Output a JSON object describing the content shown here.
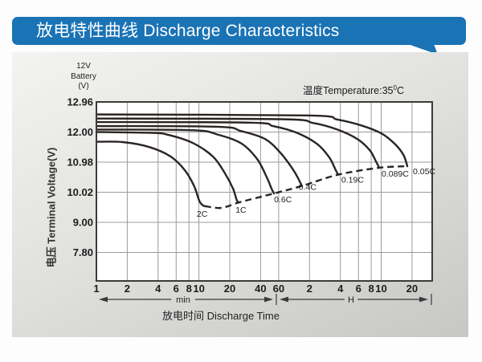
{
  "header": {
    "title": "放电特性曲线 Discharge Characteristics",
    "bg_color": "#1a73b5"
  },
  "chart_data": {
    "type": "line",
    "title_corner": [
      "12V",
      "Battery",
      "(V)"
    ],
    "temperature_note": {
      "text": "温度Temperature:35",
      "degree_sup": "0",
      "unit": "C"
    },
    "x_axis": {
      "title": "放电时间 Discharge Time",
      "scale": "log",
      "unit_segments": [
        {
          "label": "min",
          "from_minutes": 1,
          "to_minutes": 60
        },
        {
          "label": "H",
          "from_minutes": 60,
          "to_minutes": 1260
        }
      ],
      "ticks": [
        {
          "label": "1",
          "minutes": 1
        },
        {
          "label": "2",
          "minutes": 2
        },
        {
          "label": "4",
          "minutes": 4
        },
        {
          "label": "6",
          "minutes": 6
        },
        {
          "label": "8",
          "minutes": 8
        },
        {
          "label": "10",
          "minutes": 10
        },
        {
          "label": "20",
          "minutes": 20
        },
        {
          "label": "40",
          "minutes": 40
        },
        {
          "label": "60",
          "minutes": 60
        },
        {
          "label": "2",
          "minutes": 120
        },
        {
          "label": "4",
          "minutes": 240
        },
        {
          "label": "6",
          "minutes": 360
        },
        {
          "label": "8",
          "minutes": 480
        },
        {
          "label": "10",
          "minutes": 600
        },
        {
          "label": "20",
          "minutes": 1200
        }
      ]
    },
    "y_axis": {
      "title": "电压 Terminal Voltage(V)",
      "tick_labels": [
        "12.96",
        "12.00",
        "10.98",
        "10.02",
        "9.00",
        "7.80"
      ],
      "tick_values": [
        12.96,
        12.0,
        10.98,
        10.02,
        9.0,
        7.8
      ],
      "grid": true
    },
    "series": [
      {
        "name": "0.05C",
        "points": [
          [
            1,
            12.56
          ],
          [
            109,
            12.53
          ],
          [
            224,
            12.4
          ],
          [
            385,
            12.21
          ],
          [
            605,
            11.95
          ],
          [
            825,
            11.58
          ],
          [
            995,
            11.21
          ],
          [
            1079,
            10.85
          ]
        ],
        "label_offset": [
          7,
          10
        ]
      },
      {
        "name": "0.089C",
        "points": [
          [
            1,
            12.43
          ],
          [
            63,
            12.41
          ],
          [
            130,
            12.29
          ],
          [
            224,
            12.08
          ],
          [
            352,
            11.76
          ],
          [
            465,
            11.38
          ],
          [
            533,
            11.01
          ],
          [
            574,
            10.8
          ]
        ],
        "label_offset": [
          3,
          11
        ]
      },
      {
        "name": "0.19C",
        "points": [
          [
            1,
            12.32
          ],
          [
            31,
            12.3
          ],
          [
            53,
            12.19
          ],
          [
            91,
            11.97
          ],
          [
            143,
            11.59
          ],
          [
            187,
            11.14
          ],
          [
            215,
            10.74
          ],
          [
            228,
            10.58
          ]
        ],
        "label_offset": [
          4,
          10
        ]
      },
      {
        "name": "0.4C",
        "points": [
          [
            1,
            12.19
          ],
          [
            15,
            12.17
          ],
          [
            25.8,
            12.03
          ],
          [
            44.4,
            11.76
          ],
          [
            63.4,
            11.27
          ],
          [
            83,
            10.74
          ],
          [
            94,
            10.43
          ],
          [
            101,
            10.22
          ]
        ],
        "label_offset": [
          -4,
          5
        ]
      },
      {
        "name": "0.6C",
        "points": [
          [
            1,
            12.08
          ],
          [
            8.7,
            12.06
          ],
          [
            15,
            11.92
          ],
          [
            25.8,
            11.62
          ],
          [
            36.9,
            11.09
          ],
          [
            45.9,
            10.5
          ],
          [
            51,
            10.14
          ],
          [
            54,
            9.98
          ]
        ],
        "label_offset": [
          0,
          11
        ]
      },
      {
        "name": "1C",
        "points": [
          [
            1,
            12.0
          ],
          [
            3.5,
            11.97
          ],
          [
            5.1,
            11.9
          ],
          [
            8.7,
            11.63
          ],
          [
            13.7,
            11.17
          ],
          [
            17.9,
            10.63
          ],
          [
            21.5,
            10.14
          ],
          [
            23.5,
            9.74
          ],
          [
            24.9,
            9.68
          ]
        ],
        "label_offset": [
          -5,
          13
        ]
      },
      {
        "name": "2C",
        "points": [
          [
            1,
            11.67
          ],
          [
            1.8,
            11.66
          ],
          [
            3.3,
            11.49
          ],
          [
            5.3,
            11.17
          ],
          [
            7.3,
            10.72
          ],
          [
            9.0,
            10.21
          ],
          [
            10.1,
            9.72
          ],
          [
            11.0,
            9.57
          ],
          [
            11.4,
            9.55
          ]
        ],
        "label_offset": [
          -10,
          13
        ]
      }
    ],
    "cutoff_line": {
      "style": "dashed",
      "points": [
        [
          11.4,
          9.55
        ],
        [
          16.5,
          9.49
        ],
        [
          24.9,
          9.68
        ],
        [
          54,
          9.98
        ],
        [
          101,
          10.22
        ],
        [
          228,
          10.58
        ],
        [
          574,
          10.8
        ],
        [
          1079,
          10.85
        ]
      ]
    },
    "colors": {
      "curve": "#2b2522",
      "grid": "#9b9b9b",
      "frame": "#3d3a38",
      "text": "#222222",
      "header_blue": "#1a73b5"
    }
  }
}
